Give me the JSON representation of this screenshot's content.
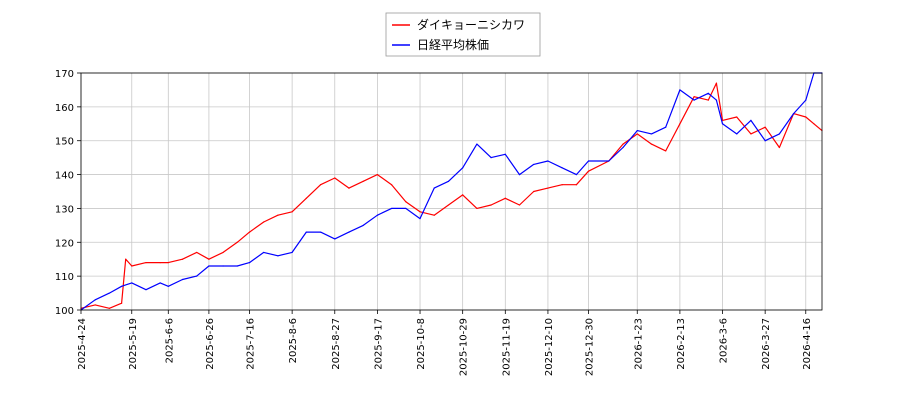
{
  "chart_data": {
    "type": "line",
    "title": "",
    "xlabel": "",
    "ylabel": "",
    "ylim": [
      100,
      170
    ],
    "xlim": [
      "2025-04-24",
      "2026-04-24"
    ],
    "yticks": [
      100,
      110,
      120,
      130,
      140,
      150,
      160,
      170
    ],
    "xticks": [
      "2025-4-24",
      "2025-5-19",
      "2025-6-6",
      "2025-6-26",
      "2025-7-16",
      "2025-8-6",
      "2025-8-27",
      "2025-9-17",
      "2025-10-8",
      "2025-10-29",
      "2025-11-19",
      "2025-12-10",
      "2025-12-30",
      "2026-1-23",
      "2026-2-13",
      "2026-3-6",
      "2026-3-27",
      "2026-4-16"
    ],
    "xtick_dates": [
      "2025-04-24",
      "2025-05-19",
      "2025-06-06",
      "2025-06-26",
      "2025-07-16",
      "2025-08-06",
      "2025-08-27",
      "2025-09-17",
      "2025-10-08",
      "2025-10-29",
      "2025-11-19",
      "2025-12-10",
      "2025-12-30",
      "2026-01-23",
      "2026-02-13",
      "2026-03-06",
      "2026-03-27",
      "2026-04-16"
    ],
    "grid": true,
    "legend_position": "top-center",
    "series": [
      {
        "name": "ダイキョーニシカワ",
        "color": "#ff0000",
        "x": [
          "2025-04-24",
          "2025-05-01",
          "2025-05-08",
          "2025-05-14",
          "2025-05-16",
          "2025-05-19",
          "2025-05-26",
          "2025-06-02",
          "2025-06-06",
          "2025-06-13",
          "2025-06-20",
          "2025-06-26",
          "2025-07-03",
          "2025-07-10",
          "2025-07-16",
          "2025-07-23",
          "2025-07-30",
          "2025-08-06",
          "2025-08-13",
          "2025-08-20",
          "2025-08-27",
          "2025-09-03",
          "2025-09-10",
          "2025-09-17",
          "2025-09-24",
          "2025-10-01",
          "2025-10-08",
          "2025-10-15",
          "2025-10-22",
          "2025-10-29",
          "2025-11-05",
          "2025-11-12",
          "2025-11-19",
          "2025-11-26",
          "2025-12-03",
          "2025-12-10",
          "2025-12-17",
          "2025-12-24",
          "2025-12-30",
          "2026-01-09",
          "2026-01-16",
          "2026-01-23",
          "2026-01-30",
          "2026-02-06",
          "2026-02-13",
          "2026-02-20",
          "2026-02-27",
          "2026-03-03",
          "2026-03-06",
          "2026-03-13",
          "2026-03-20",
          "2026-03-27",
          "2026-04-03",
          "2026-04-10",
          "2026-04-16",
          "2026-04-20",
          "2026-04-24"
        ],
        "values": [
          100.5,
          101.5,
          100.5,
          102,
          115,
          113,
          114,
          114,
          114,
          115,
          117,
          115,
          117,
          120,
          123,
          126,
          128,
          129,
          133,
          137,
          139,
          136,
          138,
          140,
          137,
          132,
          129,
          128,
          131,
          134,
          130,
          131,
          133,
          131,
          135,
          136,
          137,
          137,
          141,
          144,
          149,
          152,
          149,
          147,
          155,
          163,
          162,
          167,
          156,
          157,
          152,
          154,
          148,
          158,
          157,
          155,
          153
        ]
      },
      {
        "name": "日経平均株価",
        "color": "#0000ff",
        "x": [
          "2025-04-24",
          "2025-05-01",
          "2025-05-08",
          "2025-05-14",
          "2025-05-19",
          "2025-05-26",
          "2025-06-02",
          "2025-06-06",
          "2025-06-13",
          "2025-06-20",
          "2025-06-26",
          "2025-07-03",
          "2025-07-10",
          "2025-07-16",
          "2025-07-23",
          "2025-07-30",
          "2025-08-06",
          "2025-08-13",
          "2025-08-20",
          "2025-08-27",
          "2025-09-03",
          "2025-09-10",
          "2025-09-17",
          "2025-09-24",
          "2025-10-01",
          "2025-10-08",
          "2025-10-15",
          "2025-10-22",
          "2025-10-29",
          "2025-11-05",
          "2025-11-12",
          "2025-11-19",
          "2025-11-26",
          "2025-12-03",
          "2025-12-10",
          "2025-12-17",
          "2025-12-24",
          "2025-12-30",
          "2026-01-09",
          "2026-01-16",
          "2026-01-23",
          "2026-01-30",
          "2026-02-06",
          "2026-02-13",
          "2026-02-20",
          "2026-02-27",
          "2026-03-03",
          "2026-03-06",
          "2026-03-13",
          "2026-03-20",
          "2026-03-27",
          "2026-04-03",
          "2026-04-10",
          "2026-04-16",
          "2026-04-20",
          "2026-04-24"
        ],
        "values": [
          100,
          103,
          105,
          107,
          108,
          106,
          108,
          107,
          109,
          110,
          113,
          113,
          113,
          114,
          117,
          116,
          117,
          123,
          123,
          121,
          123,
          125,
          128,
          130,
          130,
          127,
          136,
          138,
          142,
          149,
          145,
          146,
          140,
          143,
          144,
          142,
          140,
          144,
          144,
          148,
          153,
          152,
          154,
          165,
          162,
          164,
          162,
          155,
          152,
          156,
          150,
          152,
          158,
          162,
          170,
          170
        ]
      }
    ]
  }
}
